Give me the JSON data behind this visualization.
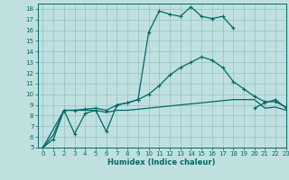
{
  "title": "",
  "xlabel": "Humidex (Indice chaleur)",
  "bg_color": "#c0e0e0",
  "grid_color": "#98c8c8",
  "line_color": "#006868",
  "xlim": [
    -0.5,
    23
  ],
  "ylim": [
    5,
    18.5
  ],
  "xticks": [
    0,
    1,
    2,
    3,
    4,
    5,
    6,
    7,
    8,
    9,
    10,
    11,
    12,
    13,
    14,
    15,
    16,
    17,
    18,
    19,
    20,
    21,
    22,
    23
  ],
  "yticks": [
    5,
    6,
    7,
    8,
    9,
    10,
    11,
    12,
    13,
    14,
    15,
    16,
    17,
    18
  ],
  "series": [
    {
      "x": [
        0,
        1,
        2,
        3,
        4,
        5,
        6,
        7,
        8,
        9,
        10,
        11,
        12,
        13,
        14,
        15,
        16,
        17,
        18,
        19,
        20,
        21,
        22,
        23
      ],
      "y": [
        5.0,
        6.2,
        8.5,
        8.5,
        8.5,
        8.5,
        8.3,
        8.5,
        8.5,
        8.6,
        8.7,
        8.8,
        8.9,
        9.0,
        9.1,
        9.2,
        9.3,
        9.4,
        9.5,
        9.5,
        9.5,
        8.7,
        8.8,
        8.5
      ],
      "marker": null,
      "lw": 0.9
    },
    {
      "x": [
        0,
        1,
        2,
        3,
        4,
        5,
        6,
        7,
        8,
        9,
        10,
        11,
        12,
        13,
        14,
        15,
        16,
        17,
        18,
        19,
        20,
        21,
        22,
        23
      ],
      "y": [
        5.0,
        5.8,
        8.5,
        8.5,
        8.6,
        8.7,
        8.5,
        9.0,
        9.2,
        9.5,
        10.0,
        10.8,
        11.8,
        12.5,
        13.0,
        13.5,
        13.2,
        12.5,
        11.2,
        10.5,
        9.8,
        9.3,
        9.3,
        8.8
      ],
      "marker": "+",
      "lw": 0.9
    },
    {
      "x": [
        0,
        2,
        3,
        4,
        5,
        6,
        7,
        8,
        9,
        10,
        11,
        12,
        13,
        14,
        15,
        16,
        17,
        18,
        20,
        21,
        22,
        23
      ],
      "y": [
        5.0,
        8.5,
        6.3,
        8.2,
        8.5,
        6.5,
        9.0,
        9.2,
        9.5,
        15.8,
        17.8,
        17.5,
        17.3,
        18.2,
        17.3,
        17.1,
        17.3,
        16.2,
        null,
        null,
        null,
        null
      ],
      "marker": "+",
      "lw": 0.9
    },
    {
      "x": [
        20,
        21,
        22,
        23
      ],
      "y": [
        8.7,
        9.2,
        9.5,
        8.7
      ],
      "marker": "+",
      "lw": 0.9
    }
  ]
}
